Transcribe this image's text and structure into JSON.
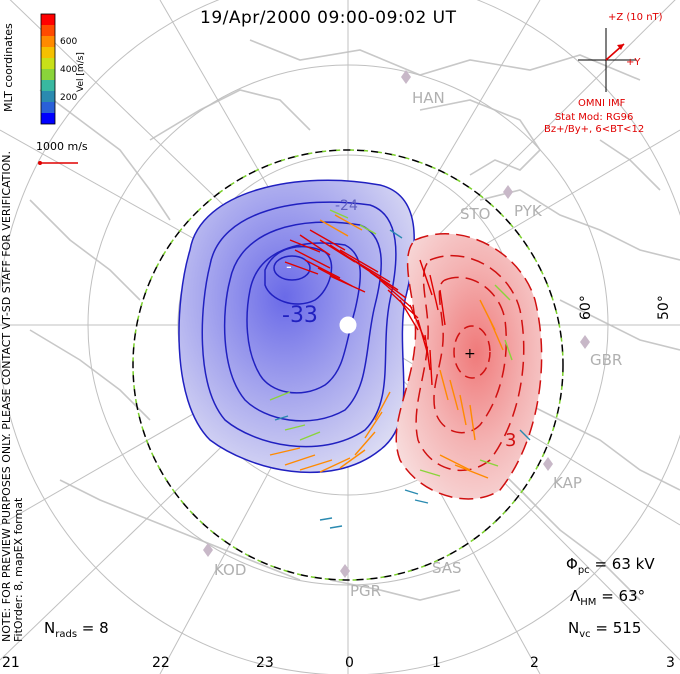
{
  "title": "19/Apr/2000 09:00-09:02 UT",
  "colorbar": {
    "label": "Vel [m/s]",
    "ticks": [
      "600",
      "400",
      "200"
    ],
    "colors": [
      "#0000ff",
      "#2244ee",
      "#2a8ab0",
      "#39b8a0",
      "#8ad43a",
      "#c8e018",
      "#f5c000",
      "#ff8a00",
      "#ff4a00",
      "#ff0000"
    ]
  },
  "coord_label": "MLT coordinates",
  "scale_label": "1000 m/s",
  "imf": {
    "bz_label": "+Z (10 nT)",
    "by_label": "+Y",
    "source": "OMNI IMF"
  },
  "stat_model": [
    "Stat Mod: RG96",
    "Bz+/By+, 6<BT<12"
  ],
  "note": "NOTE: FOR PREVIEW PURPOSES ONLY. PLEASE CONTACT VT-SD STAFF FOR VERIFICATION.",
  "fit_info": "FitOrder: 8, mapEX format",
  "latitude_labels": [
    "60°",
    "50°"
  ],
  "contour_labels": [
    "-33",
    "-24",
    "3"
  ],
  "extremum_markers": [
    "-",
    "+"
  ],
  "stations": [
    "HAN",
    "STO",
    "PYK",
    "GBR",
    "KAP",
    "SAS",
    "PGR",
    "KOD"
  ],
  "mlt_ticks": [
    "21",
    "22",
    "23",
    "0",
    "1",
    "2",
    "3"
  ],
  "params": {
    "phi_pc_symbol": "Φ",
    "phi_pc_sub": "pc",
    "phi_pc_value": " = 63 kV",
    "lambda_symbol": "Λ",
    "lambda_sub": "HM",
    "lambda_value": " = 63°",
    "nvc_symbol": "N",
    "nvc_sub": "vc",
    "nvc_value": " = 515",
    "nrads_symbol": "N",
    "nrads_sub": "rads",
    "nrads_value": " = 8"
  }
}
